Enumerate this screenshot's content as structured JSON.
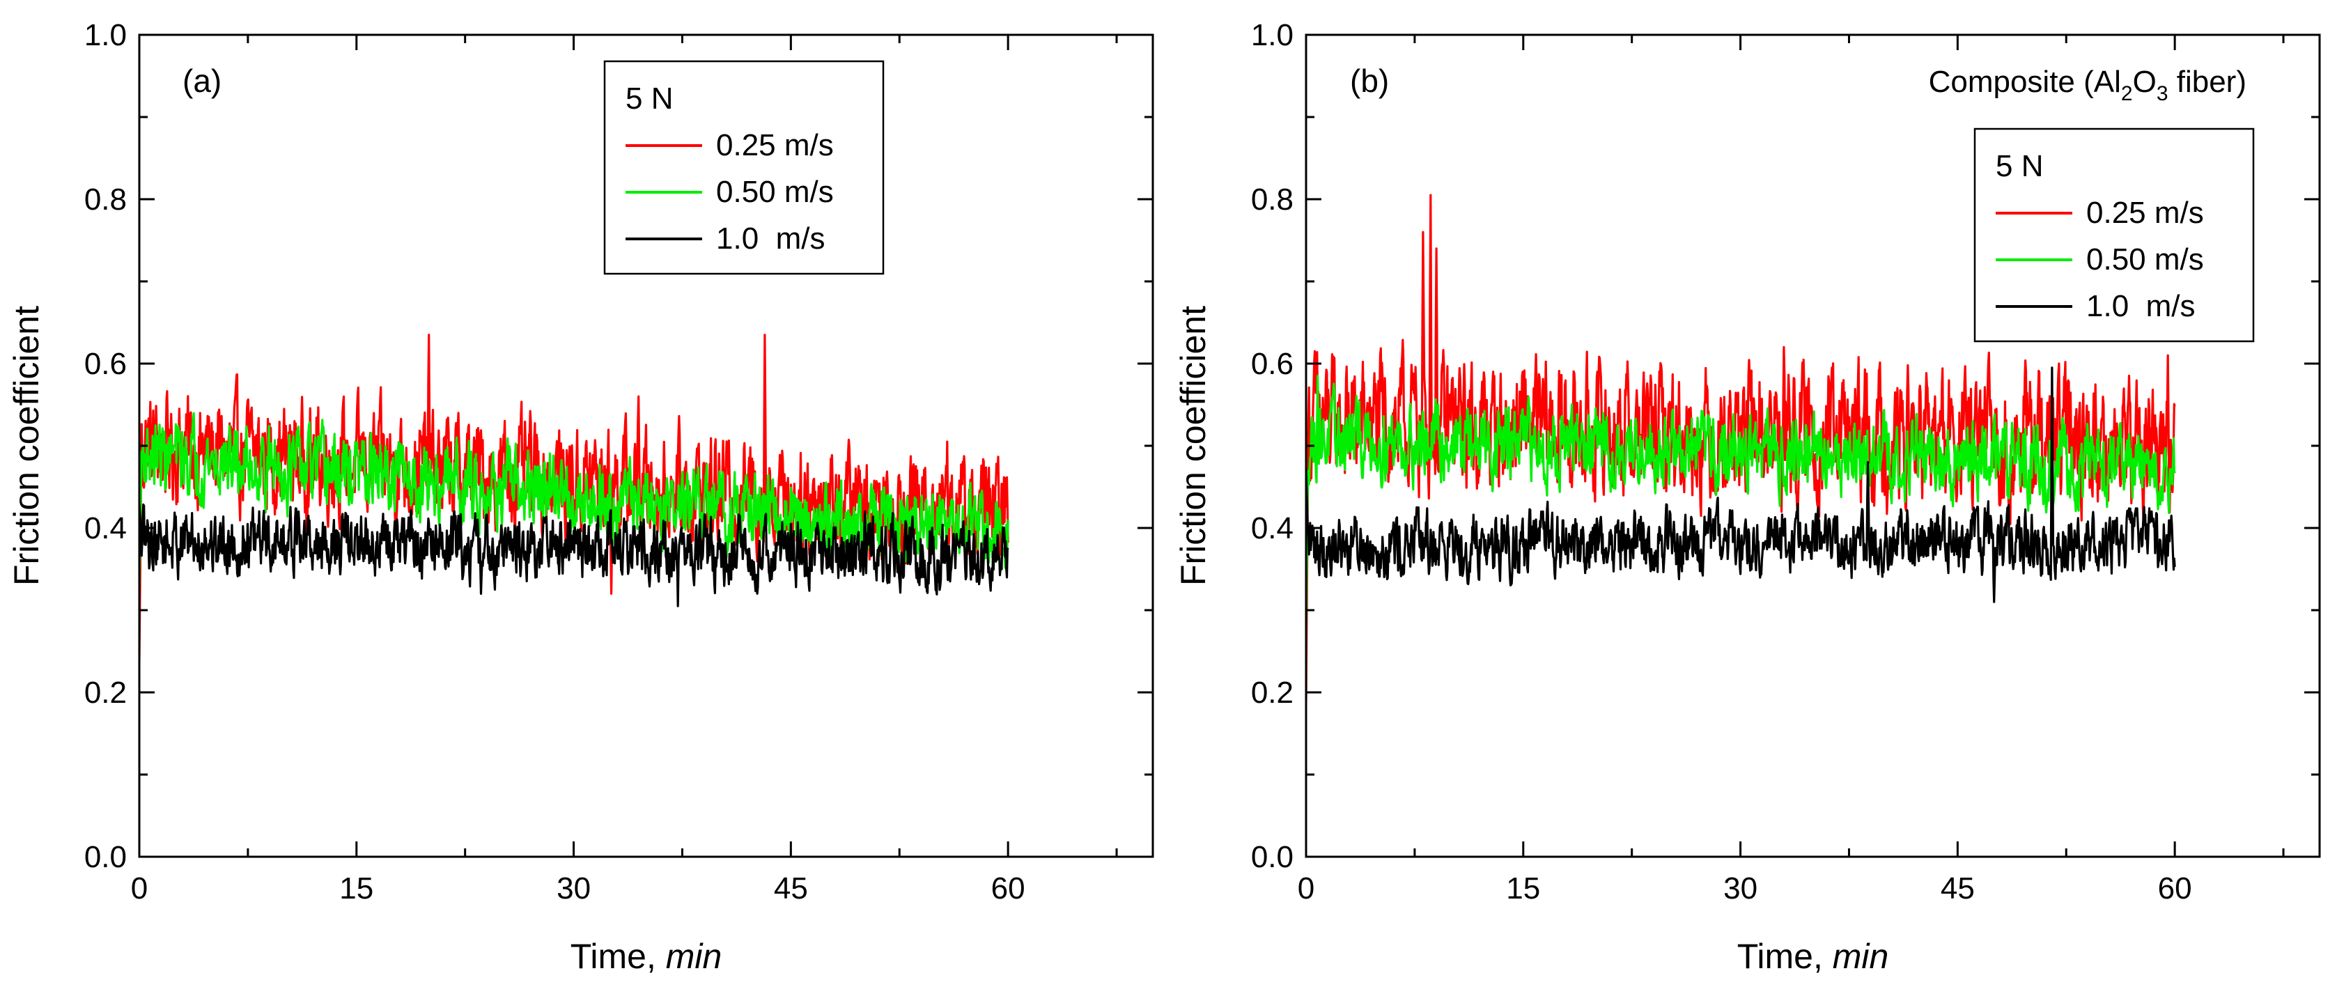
{
  "chart_data": [
    {
      "type": "line",
      "panel_label": "(a)",
      "annotation": null,
      "xlabel": "Time, ",
      "xlabel_italic": "min",
      "ylabel": "Friction coefficient",
      "xlim": [
        0,
        70
      ],
      "ylim": [
        0.0,
        1.0
      ],
      "xticks": [
        "0",
        "15",
        "30",
        "45",
        "60"
      ],
      "yticks": [
        "0.0",
        "0.2",
        "0.4",
        "0.6",
        "0.8",
        "1.0"
      ],
      "legend": {
        "title": "5 N",
        "position": "top-center"
      },
      "series": [
        {
          "name": "0.25 m/s",
          "color": "#ff0000",
          "start": 0.24,
          "mean_start": 0.5,
          "mean_end": 0.42,
          "noise": 0.05,
          "spikes": [
            [
              20,
              0.635
            ],
            [
              34.5,
              0.56
            ],
            [
              43.2,
              0.635
            ],
            [
              55.8,
              0.505
            ],
            [
              32.6,
              0.32
            ]
          ]
        },
        {
          "name": "0.50 m/s",
          "color": "#00ee00",
          "start": 0.33,
          "mean_start": 0.49,
          "mean_end": 0.39,
          "noise": 0.035,
          "spikes": [
            [
              16.2,
              0.5
            ],
            [
              21.9,
              0.51
            ],
            [
              28.0,
              0.48
            ]
          ]
        },
        {
          "name": "1.0  m/s",
          "color": "#000000",
          "start": 0.43,
          "mean_start": 0.385,
          "mean_end": 0.365,
          "noise": 0.03,
          "spikes": [
            [
              11.0,
              0.42
            ],
            [
              23.6,
              0.32
            ],
            [
              37.2,
              0.305
            ],
            [
              50.1,
              0.42
            ]
          ]
        }
      ]
    },
    {
      "type": "line",
      "panel_label": "(b)",
      "annotation": {
        "prefix": "Composite (Al",
        "sub1": "2",
        "mid": "O",
        "sub2": "3",
        "suffix": " fiber)"
      },
      "xlabel": "Time, ",
      "xlabel_italic": "min",
      "ylabel": "Friction coefficient",
      "xlim": [
        0,
        70
      ],
      "ylim": [
        0.0,
        1.0
      ],
      "xticks": [
        "0",
        "15",
        "30",
        "45",
        "60"
      ],
      "yticks": [
        "0.0",
        "0.2",
        "0.4",
        "0.6",
        "0.8",
        "1.0"
      ],
      "legend": {
        "title": "5 N",
        "position": "right"
      },
      "series": [
        {
          "name": "0.25 m/s",
          "color": "#ff0000",
          "start": 0.19,
          "mean_start": 0.53,
          "mean_end": 0.5,
          "noise": 0.06,
          "spikes": [
            [
              8.6,
              0.805
            ],
            [
              8.1,
              0.76
            ],
            [
              9.0,
              0.74
            ],
            [
              33.0,
              0.62
            ],
            [
              52.0,
              0.6
            ],
            [
              59.5,
              0.61
            ]
          ]
        },
        {
          "name": "0.50 m/s",
          "color": "#00ee00",
          "start": 0.28,
          "mean_start": 0.51,
          "mean_end": 0.475,
          "noise": 0.035,
          "spikes": [
            [
              0.8,
              0.585
            ],
            [
              20.5,
              0.54
            ]
          ]
        },
        {
          "name": "1.0  m/s",
          "color": "#000000",
          "start": 0.47,
          "mean_start": 0.38,
          "mean_end": 0.385,
          "noise": 0.03,
          "spikes": [
            [
              51.5,
              0.595
            ],
            [
              47.5,
              0.31
            ],
            [
              38.8,
              0.48
            ]
          ]
        }
      ]
    }
  ]
}
